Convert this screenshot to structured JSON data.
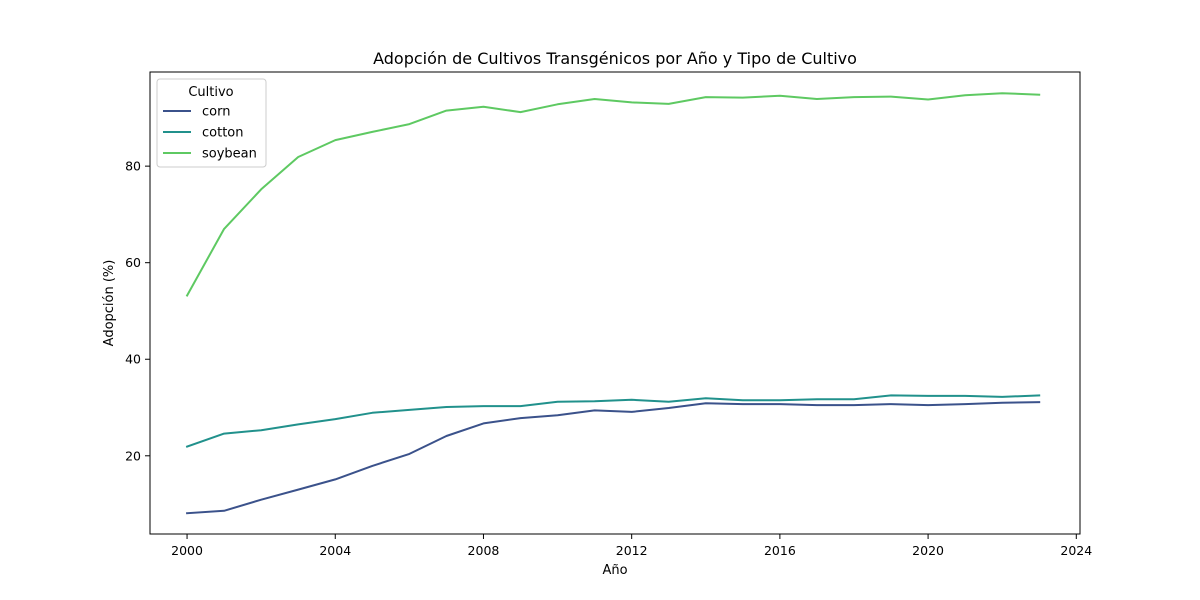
{
  "chart_data": {
    "type": "line",
    "title": "Adopción de Cultivos Transgénicos por Año y Tipo de Cultivo",
    "xlabel": "Año",
    "ylabel": "Adopción (%)",
    "xlim": [
      1999.0,
      2024.1
    ],
    "ylim": [
      3.8,
      99.5
    ],
    "xticks": [
      2000,
      2004,
      2008,
      2012,
      2016,
      2020,
      2024
    ],
    "yticks": [
      20,
      40,
      60,
      80
    ],
    "grid": false,
    "legend": {
      "title": "Cultivo",
      "placement": "top-left"
    },
    "x": [
      2000,
      2001,
      2002,
      2003,
      2004,
      2005,
      2006,
      2007,
      2008,
      2009,
      2010,
      2011,
      2012,
      2013,
      2014,
      2015,
      2016,
      2017,
      2018,
      2019,
      2020,
      2021,
      2022,
      2023
    ],
    "series": [
      {
        "name": "corn",
        "color": "#3b528b",
        "values": [
          8.1,
          8.6,
          10.9,
          13.0,
          15.1,
          17.9,
          20.4,
          24.1,
          26.7,
          27.8,
          28.4,
          29.4,
          29.1,
          29.9,
          30.9,
          30.7,
          30.7,
          30.5,
          30.5,
          30.7,
          30.5,
          30.7,
          31.0,
          31.1
        ]
      },
      {
        "name": "cotton",
        "color": "#21918c",
        "values": [
          21.9,
          24.6,
          25.3,
          26.5,
          27.6,
          28.9,
          29.5,
          30.1,
          30.3,
          30.3,
          31.2,
          31.3,
          31.6,
          31.2,
          31.9,
          31.5,
          31.5,
          31.7,
          31.7,
          32.5,
          32.4,
          32.4,
          32.2,
          32.5
        ]
      },
      {
        "name": "soybean",
        "color": "#5ec962",
        "values": [
          53.2,
          67.0,
          75.2,
          81.9,
          85.4,
          87.1,
          88.7,
          91.5,
          92.3,
          91.2,
          92.8,
          93.9,
          93.2,
          92.9,
          94.3,
          94.2,
          94.6,
          93.9,
          94.3,
          94.4,
          93.8,
          94.7,
          95.1,
          94.8
        ]
      }
    ]
  }
}
